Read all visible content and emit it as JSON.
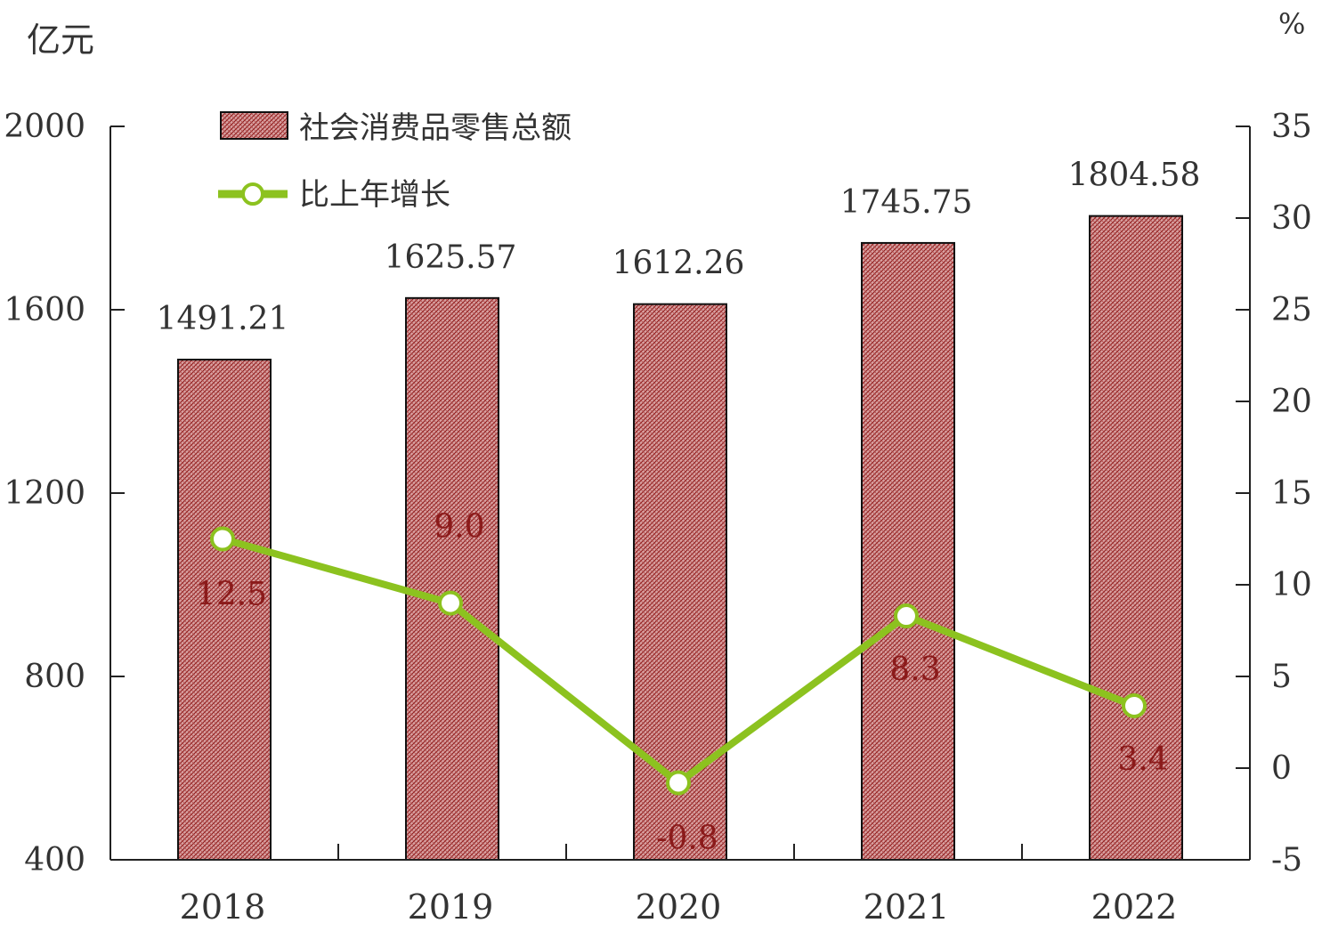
{
  "chart_data": {
    "type": "bar",
    "categories": [
      "2018",
      "2019",
      "2020",
      "2021",
      "2022"
    ],
    "series": [
      {
        "name": "社会消费品零售总额",
        "type": "bar",
        "axis": "left",
        "values": [
          1491.21,
          1625.57,
          1612.26,
          1745.75,
          1804.58
        ],
        "labels": [
          "1491.21",
          "1625.57",
          "1612.26",
          "1745.75",
          "1804.58"
        ],
        "color": "#c0504d"
      },
      {
        "name": "比上年增长",
        "type": "line",
        "axis": "right",
        "values": [
          12.5,
          9.0,
          -0.8,
          8.3,
          3.4
        ],
        "labels": [
          "12.5",
          "9.0",
          "-0.8",
          "8.3",
          "3.4"
        ],
        "color": "#8cc21f"
      }
    ],
    "y_left": {
      "label": "亿元",
      "range": [
        400,
        2000
      ],
      "ticks": [
        "400",
        "800",
        "1200",
        "1600",
        "2000"
      ]
    },
    "y_right": {
      "label": "%",
      "range": [
        -5,
        35
      ],
      "ticks": [
        "-5",
        "0",
        "5",
        "10",
        "15",
        "20",
        "25",
        "30",
        "35"
      ]
    },
    "legend_position": "top-left",
    "grid": false
  }
}
